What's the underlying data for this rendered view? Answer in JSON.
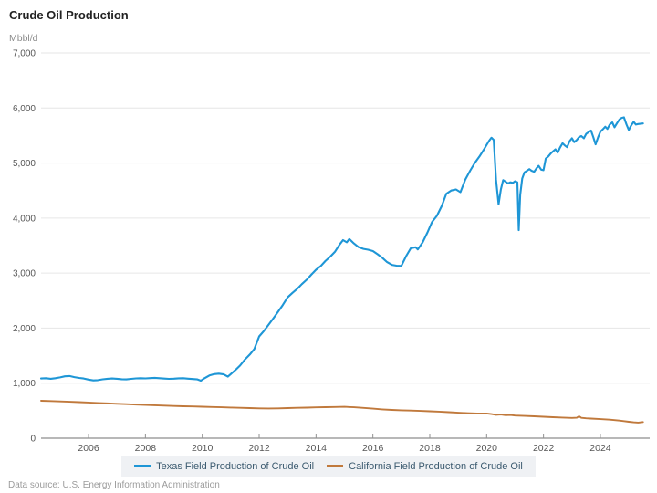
{
  "chart": {
    "title": "Crude Oil Production",
    "unit": "Mbbl/d",
    "source": "Data source: U.S. Energy Information Administration"
  },
  "chart_data": {
    "type": "line",
    "title": "Crude Oil Production",
    "ylabel": "Mbbl/d",
    "x_range": [
      2004.33,
      2025.67
    ],
    "y_range": [
      0,
      7000
    ],
    "x_ticks": [
      2006,
      2008,
      2010,
      2012,
      2014,
      2016,
      2018,
      2020,
      2022,
      2024
    ],
    "y_ticks": [
      0,
      1000,
      2000,
      3000,
      4000,
      5000,
      6000,
      7000
    ],
    "grid": "horizontal",
    "legend_position": "bottom",
    "colors": {
      "gridline": "#e6e6e6",
      "axis_line": "#a0a0a0",
      "tick": "#909090"
    },
    "series": [
      {
        "name": "Texas Field Production of Crude Oil",
        "color": "#1e96d6",
        "points": [
          [
            2004.33,
            1085
          ],
          [
            2004.5,
            1090
          ],
          [
            2004.67,
            1080
          ],
          [
            2004.83,
            1090
          ],
          [
            2005.0,
            1105
          ],
          [
            2005.17,
            1125
          ],
          [
            2005.33,
            1130
          ],
          [
            2005.5,
            1110
          ],
          [
            2005.67,
            1095
          ],
          [
            2005.83,
            1085
          ],
          [
            2006.0,
            1065
          ],
          [
            2006.17,
            1050
          ],
          [
            2006.33,
            1055
          ],
          [
            2006.5,
            1070
          ],
          [
            2006.67,
            1080
          ],
          [
            2006.83,
            1085
          ],
          [
            2007.0,
            1080
          ],
          [
            2007.17,
            1072
          ],
          [
            2007.33,
            1068
          ],
          [
            2007.5,
            1078
          ],
          [
            2007.67,
            1086
          ],
          [
            2007.83,
            1090
          ],
          [
            2008.0,
            1086
          ],
          [
            2008.17,
            1092
          ],
          [
            2008.33,
            1096
          ],
          [
            2008.5,
            1090
          ],
          [
            2008.67,
            1084
          ],
          [
            2008.83,
            1078
          ],
          [
            2009.0,
            1082
          ],
          [
            2009.17,
            1088
          ],
          [
            2009.33,
            1090
          ],
          [
            2009.5,
            1082
          ],
          [
            2009.67,
            1075
          ],
          [
            2009.83,
            1068
          ],
          [
            2009.95,
            1045
          ],
          [
            2010.08,
            1090
          ],
          [
            2010.25,
            1140
          ],
          [
            2010.42,
            1165
          ],
          [
            2010.58,
            1172
          ],
          [
            2010.75,
            1160
          ],
          [
            2010.9,
            1118
          ],
          [
            2011.0,
            1165
          ],
          [
            2011.17,
            1240
          ],
          [
            2011.33,
            1320
          ],
          [
            2011.5,
            1430
          ],
          [
            2011.67,
            1520
          ],
          [
            2011.83,
            1620
          ],
          [
            2012.0,
            1850
          ],
          [
            2012.17,
            1950
          ],
          [
            2012.33,
            2060
          ],
          [
            2012.5,
            2180
          ],
          [
            2012.67,
            2300
          ],
          [
            2012.83,
            2420
          ],
          [
            2013.0,
            2560
          ],
          [
            2013.17,
            2640
          ],
          [
            2013.33,
            2710
          ],
          [
            2013.5,
            2800
          ],
          [
            2013.67,
            2880
          ],
          [
            2013.83,
            2970
          ],
          [
            2014.0,
            3060
          ],
          [
            2014.17,
            3130
          ],
          [
            2014.33,
            3220
          ],
          [
            2014.5,
            3300
          ],
          [
            2014.67,
            3390
          ],
          [
            2014.83,
            3520
          ],
          [
            2014.95,
            3600
          ],
          [
            2015.08,
            3560
          ],
          [
            2015.17,
            3620
          ],
          [
            2015.33,
            3540
          ],
          [
            2015.5,
            3470
          ],
          [
            2015.67,
            3440
          ],
          [
            2015.83,
            3425
          ],
          [
            2016.0,
            3400
          ],
          [
            2016.17,
            3340
          ],
          [
            2016.33,
            3280
          ],
          [
            2016.5,
            3200
          ],
          [
            2016.67,
            3150
          ],
          [
            2016.83,
            3135
          ],
          [
            2017.0,
            3130
          ],
          [
            2017.17,
            3310
          ],
          [
            2017.33,
            3450
          ],
          [
            2017.5,
            3470
          ],
          [
            2017.58,
            3430
          ],
          [
            2017.75,
            3560
          ],
          [
            2017.92,
            3740
          ],
          [
            2018.08,
            3930
          ],
          [
            2018.25,
            4040
          ],
          [
            2018.42,
            4220
          ],
          [
            2018.58,
            4440
          ],
          [
            2018.75,
            4500
          ],
          [
            2018.92,
            4520
          ],
          [
            2019.08,
            4470
          ],
          [
            2019.25,
            4700
          ],
          [
            2019.42,
            4860
          ],
          [
            2019.58,
            5000
          ],
          [
            2019.75,
            5120
          ],
          [
            2019.92,
            5260
          ],
          [
            2020.08,
            5400
          ],
          [
            2020.17,
            5460
          ],
          [
            2020.25,
            5420
          ],
          [
            2020.33,
            4700
          ],
          [
            2020.42,
            4250
          ],
          [
            2020.5,
            4520
          ],
          [
            2020.58,
            4690
          ],
          [
            2020.67,
            4660
          ],
          [
            2020.75,
            4630
          ],
          [
            2020.83,
            4650
          ],
          [
            2020.92,
            4640
          ],
          [
            2021.0,
            4670
          ],
          [
            2021.08,
            4650
          ],
          [
            2021.13,
            3780
          ],
          [
            2021.18,
            4420
          ],
          [
            2021.25,
            4720
          ],
          [
            2021.33,
            4830
          ],
          [
            2021.42,
            4860
          ],
          [
            2021.5,
            4890
          ],
          [
            2021.58,
            4860
          ],
          [
            2021.67,
            4840
          ],
          [
            2021.75,
            4900
          ],
          [
            2021.83,
            4950
          ],
          [
            2021.92,
            4880
          ],
          [
            2022.0,
            4870
          ],
          [
            2022.08,
            5080
          ],
          [
            2022.17,
            5120
          ],
          [
            2022.25,
            5170
          ],
          [
            2022.33,
            5210
          ],
          [
            2022.42,
            5250
          ],
          [
            2022.5,
            5190
          ],
          [
            2022.58,
            5280
          ],
          [
            2022.67,
            5360
          ],
          [
            2022.75,
            5320
          ],
          [
            2022.83,
            5290
          ],
          [
            2022.92,
            5400
          ],
          [
            2023.0,
            5450
          ],
          [
            2023.08,
            5380
          ],
          [
            2023.17,
            5420
          ],
          [
            2023.25,
            5470
          ],
          [
            2023.33,
            5490
          ],
          [
            2023.42,
            5450
          ],
          [
            2023.5,
            5530
          ],
          [
            2023.58,
            5560
          ],
          [
            2023.67,
            5590
          ],
          [
            2023.75,
            5470
          ],
          [
            2023.83,
            5340
          ],
          [
            2023.92,
            5470
          ],
          [
            2024.0,
            5570
          ],
          [
            2024.08,
            5610
          ],
          [
            2024.17,
            5660
          ],
          [
            2024.25,
            5620
          ],
          [
            2024.33,
            5700
          ],
          [
            2024.42,
            5740
          ],
          [
            2024.5,
            5650
          ],
          [
            2024.58,
            5720
          ],
          [
            2024.67,
            5790
          ],
          [
            2024.75,
            5820
          ],
          [
            2024.83,
            5830
          ],
          [
            2024.92,
            5700
          ],
          [
            2025.0,
            5600
          ],
          [
            2025.08,
            5680
          ],
          [
            2025.17,
            5750
          ],
          [
            2025.25,
            5700
          ],
          [
            2025.33,
            5710
          ],
          [
            2025.5,
            5720
          ]
        ]
      },
      {
        "name": "California Field Production of Crude Oil",
        "color": "#c0793c",
        "points": [
          [
            2004.33,
            680
          ],
          [
            2004.67,
            675
          ],
          [
            2005.0,
            668
          ],
          [
            2005.33,
            662
          ],
          [
            2005.67,
            656
          ],
          [
            2006.0,
            648
          ],
          [
            2006.33,
            640
          ],
          [
            2006.67,
            633
          ],
          [
            2007.0,
            626
          ],
          [
            2007.33,
            618
          ],
          [
            2007.67,
            611
          ],
          [
            2008.0,
            604
          ],
          [
            2008.33,
            598
          ],
          [
            2008.67,
            592
          ],
          [
            2009.0,
            586
          ],
          [
            2009.33,
            581
          ],
          [
            2009.67,
            577
          ],
          [
            2010.0,
            573
          ],
          [
            2010.33,
            568
          ],
          [
            2010.67,
            563
          ],
          [
            2011.0,
            558
          ],
          [
            2011.33,
            553
          ],
          [
            2011.67,
            548
          ],
          [
            2012.0,
            543
          ],
          [
            2012.33,
            540
          ],
          [
            2012.67,
            542
          ],
          [
            2013.0,
            548
          ],
          [
            2013.33,
            552
          ],
          [
            2013.67,
            556
          ],
          [
            2014.0,
            560
          ],
          [
            2014.33,
            564
          ],
          [
            2014.67,
            568
          ],
          [
            2015.0,
            570
          ],
          [
            2015.33,
            562
          ],
          [
            2015.67,
            550
          ],
          [
            2016.0,
            538
          ],
          [
            2016.33,
            525
          ],
          [
            2016.67,
            515
          ],
          [
            2017.0,
            508
          ],
          [
            2017.33,
            502
          ],
          [
            2017.67,
            496
          ],
          [
            2018.0,
            490
          ],
          [
            2018.33,
            482
          ],
          [
            2018.67,
            472
          ],
          [
            2019.0,
            463
          ],
          [
            2019.33,
            455
          ],
          [
            2019.67,
            448
          ],
          [
            2020.0,
            450
          ],
          [
            2020.17,
            438
          ],
          [
            2020.33,
            425
          ],
          [
            2020.5,
            430
          ],
          [
            2020.67,
            418
          ],
          [
            2020.83,
            422
          ],
          [
            2021.0,
            412
          ],
          [
            2021.33,
            405
          ],
          [
            2021.67,
            398
          ],
          [
            2022.0,
            390
          ],
          [
            2022.33,
            382
          ],
          [
            2022.67,
            375
          ],
          [
            2023.0,
            368
          ],
          [
            2023.17,
            372
          ],
          [
            2023.25,
            398
          ],
          [
            2023.33,
            370
          ],
          [
            2023.5,
            362
          ],
          [
            2023.67,
            356
          ],
          [
            2024.0,
            346
          ],
          [
            2024.33,
            336
          ],
          [
            2024.67,
            320
          ],
          [
            2024.83,
            310
          ],
          [
            2025.0,
            298
          ],
          [
            2025.17,
            288
          ],
          [
            2025.33,
            284
          ],
          [
            2025.5,
            294
          ]
        ]
      }
    ]
  }
}
